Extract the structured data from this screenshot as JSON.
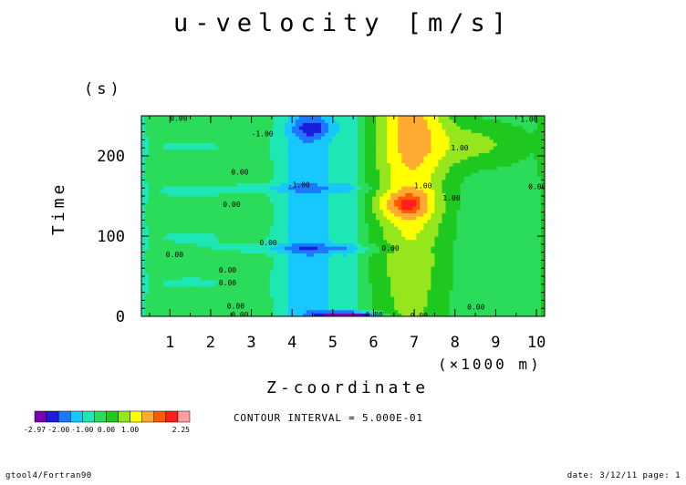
{
  "chart_data": {
    "type": "heatmap",
    "title": "u-velocity [m/s]",
    "xlabel": "Z-coordinate",
    "xunit": "(×1000 m)",
    "ylabel": "Time",
    "yunit": "(s)",
    "xlim": [
      0.3,
      10.2
    ],
    "ylim": [
      0,
      250
    ],
    "x_ticks": [
      "1",
      "2",
      "3",
      "4",
      "5",
      "6",
      "7",
      "8",
      "9",
      "10"
    ],
    "y_ticks": [
      "0",
      "100",
      "200"
    ],
    "contour_interval": "CONTOUR INTERVAL = 5.000E-01",
    "contour_labels": [
      "0.00",
      "1.00",
      "-1.00"
    ],
    "colorbar": {
      "labels": [
        "-2.97",
        "-2.00",
        "-1.00",
        "0.00",
        "1.00",
        "2.25"
      ],
      "colors": [
        "#7b00b4",
        "#1c1cdc",
        "#1e78ff",
        "#17c8ff",
        "#1ee6b4",
        "#2adc5a",
        "#1ec81e",
        "#96e61e",
        "#ffff00",
        "#ffaa32",
        "#ff5a00",
        "#ff1e1e",
        "#ffa0a0"
      ]
    },
    "footer_left": "gtool4/Fortran90",
    "footer_right": "date: 3/12/11 page: 1"
  }
}
